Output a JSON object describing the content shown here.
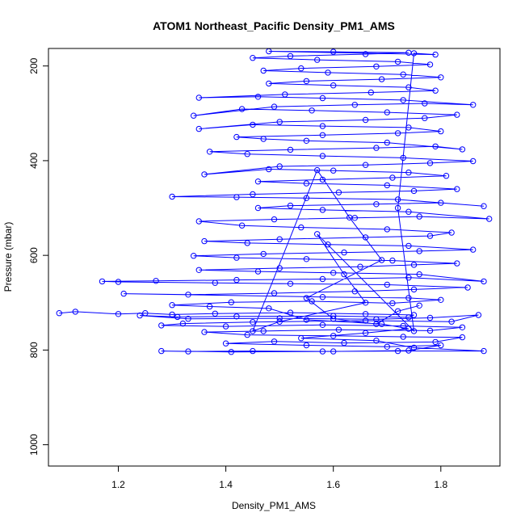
{
  "chart_data": {
    "type": "scatter",
    "title": "ATOM1 Northeast_Pacific Density_PM1_AMS",
    "xlabel": "Density_PM1_AMS",
    "ylabel": "Pressure (mbar)",
    "xlim": [
      1.07,
      1.91
    ],
    "ylim": [
      1045,
      163
    ],
    "y_reversed": true,
    "grid": false,
    "legend": "none",
    "x_ticks": [
      {
        "value": 1.2,
        "label": "1.2"
      },
      {
        "value": 1.4,
        "label": "1.4"
      },
      {
        "value": 1.6,
        "label": "1.6"
      },
      {
        "value": 1.8,
        "label": "1.8"
      }
    ],
    "y_ticks": [
      {
        "value": 200,
        "label": "200"
      },
      {
        "value": 400,
        "label": "400"
      },
      {
        "value": 600,
        "label": "600"
      },
      {
        "value": 800,
        "label": "800"
      },
      {
        "value": 1000,
        "label": "1000"
      }
    ],
    "series": [
      {
        "marker": "open-circle",
        "connected": true,
        "color": "#0000ff",
        "points": [
          [
            1.09,
            722
          ],
          [
            1.12,
            719
          ],
          [
            1.2,
            724
          ],
          [
            1.25,
            722
          ],
          [
            1.3,
            725
          ],
          [
            1.38,
            723
          ],
          [
            1.52,
            721
          ],
          [
            1.66,
            724
          ],
          [
            1.75,
            726
          ],
          [
            1.74,
            731
          ],
          [
            1.6,
            728
          ],
          [
            1.42,
            729
          ],
          [
            1.31,
            730
          ],
          [
            1.24,
            727
          ],
          [
            1.33,
            734
          ],
          [
            1.5,
            733
          ],
          [
            1.68,
            735
          ],
          [
            1.78,
            732
          ],
          [
            1.87,
            726
          ],
          [
            1.82,
            740
          ],
          [
            1.66,
            738
          ],
          [
            1.45,
            741
          ],
          [
            1.32,
            744
          ],
          [
            1.28,
            748
          ],
          [
            1.4,
            750
          ],
          [
            1.58,
            747
          ],
          [
            1.73,
            749
          ],
          [
            1.84,
            752
          ],
          [
            1.78,
            759
          ],
          [
            1.61,
            757
          ],
          [
            1.47,
            760
          ],
          [
            1.36,
            762
          ],
          [
            1.44,
            768
          ],
          [
            1.6,
            770
          ],
          [
            1.73,
            772
          ],
          [
            1.84,
            773
          ],
          [
            1.79,
            783
          ],
          [
            1.62,
            785
          ],
          [
            1.49,
            782
          ],
          [
            1.4,
            786
          ],
          [
            1.55,
            790
          ],
          [
            1.7,
            793
          ],
          [
            1.8,
            790
          ],
          [
            1.74,
            801
          ],
          [
            1.6,
            803
          ],
          [
            1.45,
            802
          ],
          [
            1.33,
            803
          ],
          [
            1.28,
            802
          ],
          [
            1.41,
            804
          ],
          [
            1.58,
            803
          ],
          [
            1.72,
            802
          ],
          [
            1.88,
            802
          ],
          [
            1.75,
            795
          ],
          [
            1.68,
            780
          ],
          [
            1.54,
            775
          ],
          [
            1.66,
            764
          ],
          [
            1.74,
            755
          ],
          [
            1.69,
            745
          ],
          [
            1.55,
            736
          ],
          [
            1.48,
            712
          ],
          [
            1.37,
            708
          ],
          [
            1.3,
            705
          ],
          [
            1.41,
            699
          ],
          [
            1.56,
            697
          ],
          [
            1.71,
            701
          ],
          [
            1.8,
            694
          ],
          [
            1.74,
            690
          ],
          [
            1.58,
            688
          ],
          [
            1.21,
            681
          ],
          [
            1.33,
            683
          ],
          [
            1.49,
            680
          ],
          [
            1.64,
            676
          ],
          [
            1.75,
            672
          ],
          [
            1.85,
            668
          ],
          [
            1.7,
            662
          ],
          [
            1.52,
            660
          ],
          [
            1.38,
            658
          ],
          [
            1.2,
            656
          ],
          [
            1.17,
            655
          ],
          [
            1.27,
            654
          ],
          [
            1.42,
            652
          ],
          [
            1.58,
            650
          ],
          [
            1.74,
            647
          ],
          [
            1.88,
            655
          ],
          [
            1.76,
            640
          ],
          [
            1.6,
            637
          ],
          [
            1.46,
            634
          ],
          [
            1.35,
            631
          ],
          [
            1.5,
            627
          ],
          [
            1.65,
            624
          ],
          [
            1.75,
            620
          ],
          [
            1.83,
            617
          ],
          [
            1.71,
            611
          ],
          [
            1.55,
            608
          ],
          [
            1.42,
            605
          ],
          [
            1.34,
            601
          ],
          [
            1.47,
            597
          ],
          [
            1.62,
            594
          ],
          [
            1.76,
            591
          ],
          [
            1.86,
            588
          ],
          [
            1.74,
            580
          ],
          [
            1.59,
            577
          ],
          [
            1.44,
            574
          ],
          [
            1.36,
            570
          ],
          [
            1.5,
            566
          ],
          [
            1.66,
            562
          ],
          [
            1.78,
            559
          ],
          [
            1.82,
            552
          ],
          [
            1.7,
            545
          ],
          [
            1.54,
            541
          ],
          [
            1.43,
            537
          ],
          [
            1.35,
            528
          ],
          [
            1.49,
            524
          ],
          [
            1.64,
            521
          ],
          [
            1.76,
            518
          ],
          [
            1.89,
            523
          ],
          [
            1.74,
            508
          ],
          [
            1.58,
            504
          ],
          [
            1.46,
            500
          ],
          [
            1.52,
            495
          ],
          [
            1.68,
            492
          ],
          [
            1.8,
            489
          ],
          [
            1.88,
            496
          ],
          [
            1.72,
            482
          ],
          [
            1.55,
            479
          ],
          [
            1.42,
            477
          ],
          [
            1.3,
            476
          ],
          [
            1.45,
            471
          ],
          [
            1.61,
            467
          ],
          [
            1.75,
            464
          ],
          [
            1.83,
            460
          ],
          [
            1.7,
            452
          ],
          [
            1.55,
            448
          ],
          [
            1.46,
            444
          ],
          [
            1.58,
            440
          ],
          [
            1.71,
            436
          ],
          [
            1.81,
            432
          ],
          [
            1.74,
            425
          ],
          [
            1.6,
            421
          ],
          [
            1.48,
            418
          ],
          [
            1.36,
            429
          ],
          [
            1.5,
            412
          ],
          [
            1.66,
            409
          ],
          [
            1.78,
            405
          ],
          [
            1.86,
            401
          ],
          [
            1.73,
            394
          ],
          [
            1.58,
            390
          ],
          [
            1.44,
            386
          ],
          [
            1.37,
            381
          ],
          [
            1.52,
            377
          ],
          [
            1.68,
            373
          ],
          [
            1.79,
            370
          ],
          [
            1.84,
            376
          ],
          [
            1.7,
            362
          ],
          [
            1.55,
            358
          ],
          [
            1.47,
            354
          ],
          [
            1.42,
            350
          ],
          [
            1.58,
            346
          ],
          [
            1.72,
            342
          ],
          [
            1.8,
            338
          ],
          [
            1.74,
            330
          ],
          [
            1.58,
            327
          ],
          [
            1.45,
            324
          ],
          [
            1.35,
            333
          ],
          [
            1.5,
            318
          ],
          [
            1.66,
            314
          ],
          [
            1.77,
            310
          ],
          [
            1.83,
            303
          ],
          [
            1.7,
            298
          ],
          [
            1.56,
            294
          ],
          [
            1.43,
            291
          ],
          [
            1.34,
            305
          ],
          [
            1.49,
            286
          ],
          [
            1.64,
            282
          ],
          [
            1.77,
            279
          ],
          [
            1.86,
            282
          ],
          [
            1.73,
            272
          ],
          [
            1.58,
            268
          ],
          [
            1.46,
            265
          ],
          [
            1.35,
            267
          ],
          [
            1.51,
            260
          ],
          [
            1.67,
            256
          ],
          [
            1.79,
            252
          ],
          [
            1.74,
            245
          ],
          [
            1.6,
            241
          ],
          [
            1.48,
            237
          ],
          [
            1.55,
            232
          ],
          [
            1.69,
            228
          ],
          [
            1.8,
            224
          ],
          [
            1.73,
            218
          ],
          [
            1.59,
            214
          ],
          [
            1.47,
            210
          ],
          [
            1.54,
            205
          ],
          [
            1.68,
            201
          ],
          [
            1.78,
            197
          ],
          [
            1.72,
            191
          ],
          [
            1.57,
            187
          ],
          [
            1.45,
            183
          ],
          [
            1.52,
            179
          ],
          [
            1.66,
            175
          ],
          [
            1.74,
            172
          ],
          [
            1.6,
            170
          ],
          [
            1.48,
            169
          ],
          [
            1.79,
            176
          ],
          [
            1.75,
            173
          ],
          [
            1.72,
            500
          ],
          [
            1.75,
            760
          ],
          [
            1.57,
            555
          ],
          [
            1.62,
            640
          ],
          [
            1.66,
            700
          ],
          [
            1.5,
            740
          ],
          [
            1.45,
            760
          ],
          [
            1.57,
            420
          ],
          [
            1.63,
            520
          ],
          [
            1.69,
            610
          ],
          [
            1.55,
            690
          ],
          [
            1.6,
            734
          ],
          [
            1.68,
            745
          ],
          [
            1.72,
            718
          ],
          [
            1.76,
            706
          ]
        ]
      }
    ]
  }
}
